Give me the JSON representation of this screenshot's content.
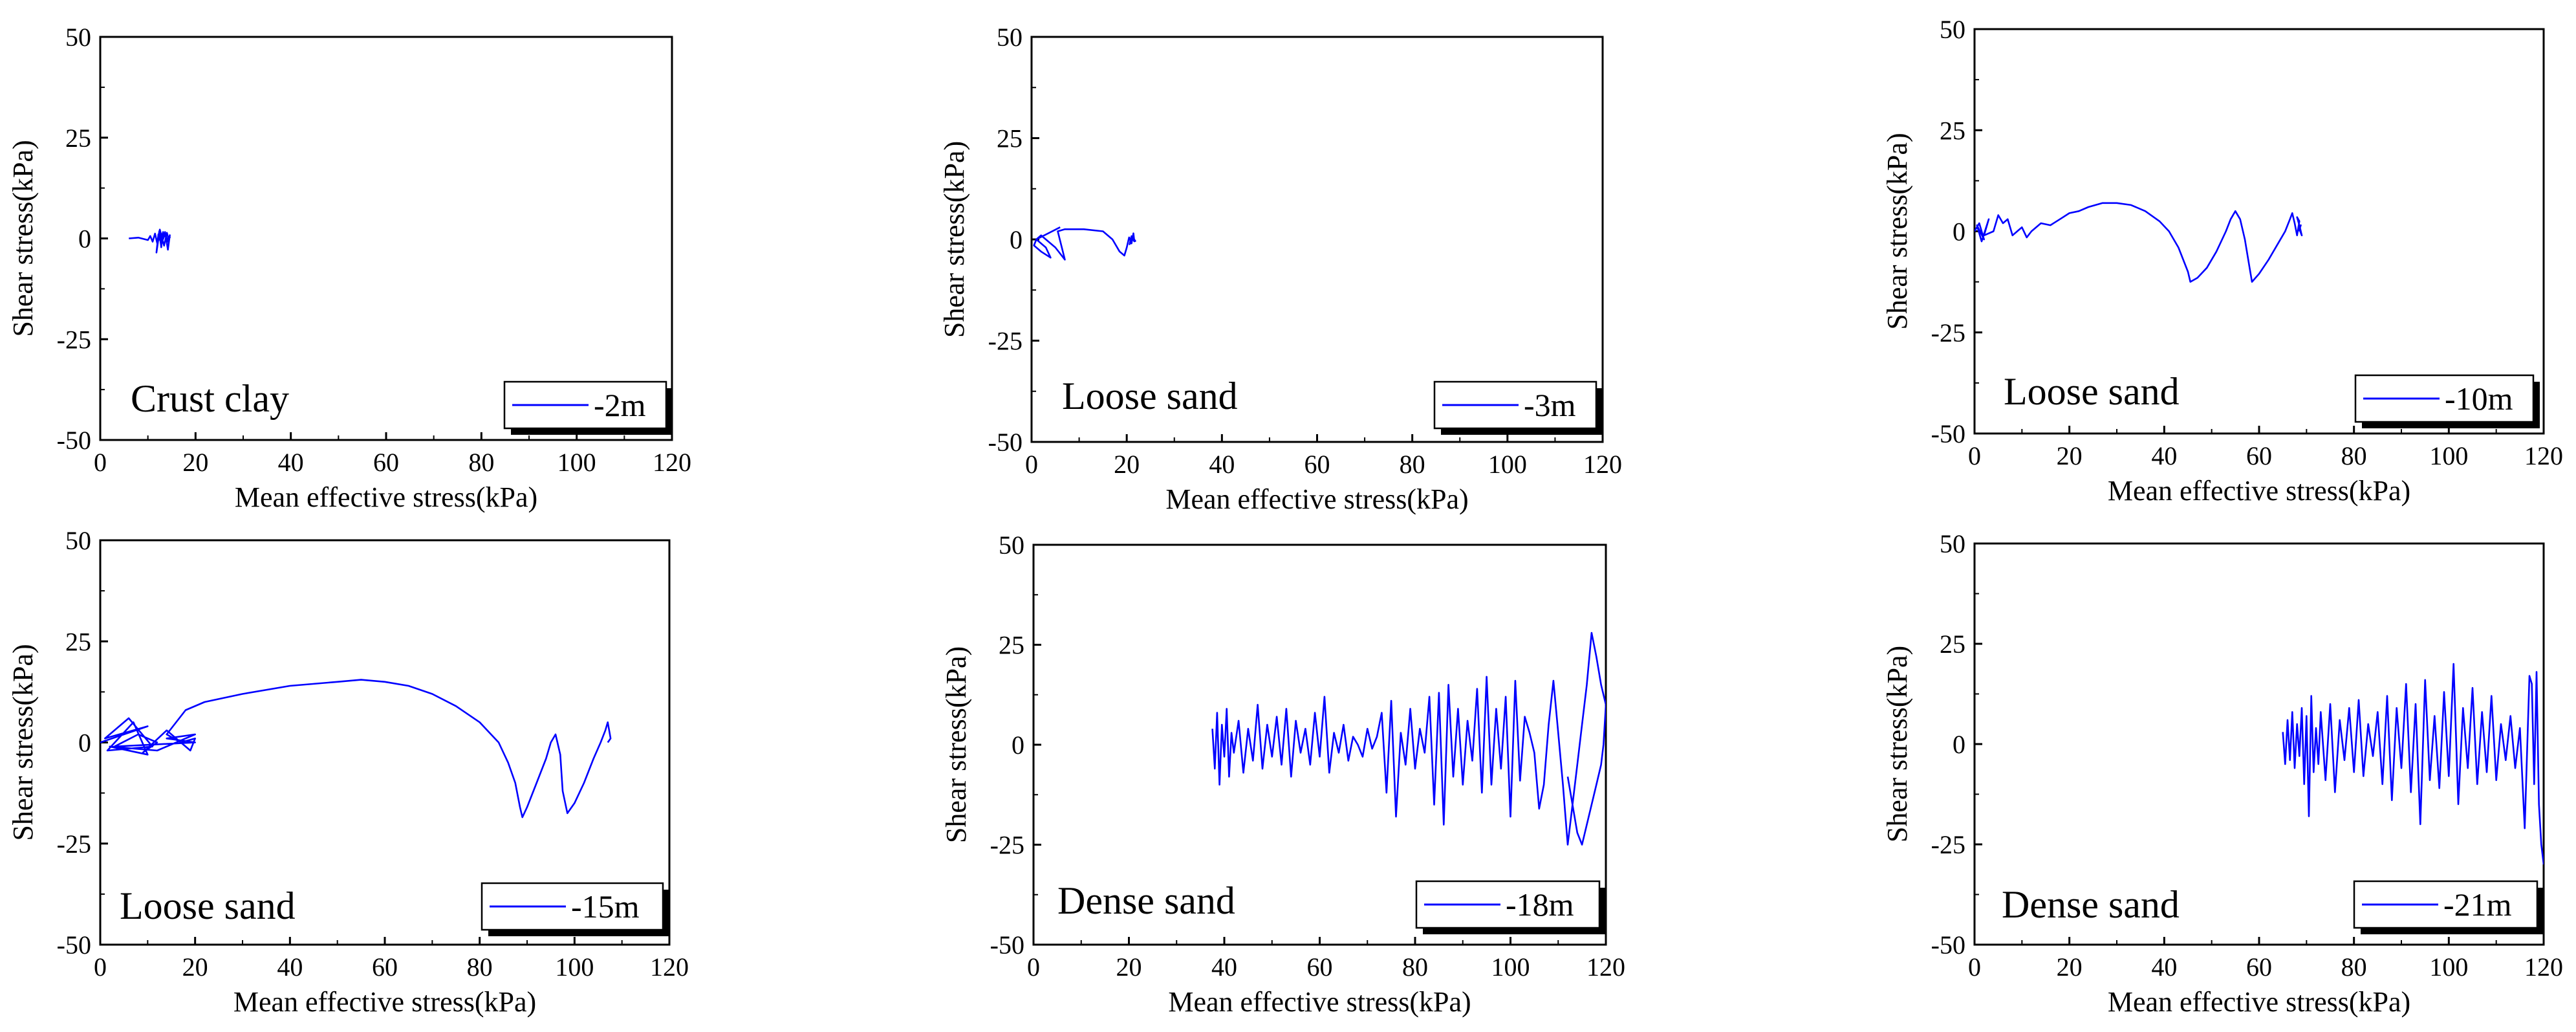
{
  "figure": {
    "colors": {
      "line": "#0000ff",
      "axis": "#000000",
      "background": "#ffffff"
    }
  },
  "chart_data": [
    {
      "type": "line",
      "annotation": "Crust clay",
      "legend": "-2m",
      "legend_position": "bottom-right",
      "xlabel": "Mean effective stress(kPa)",
      "ylabel": "Shear stress(kPa)",
      "xlim": [
        0,
        120
      ],
      "ylim": [
        -50,
        50
      ],
      "xticks": [
        "0",
        "20",
        "40",
        "60",
        "80",
        "100",
        "120"
      ],
      "yticks": [
        "50",
        "25",
        "0",
        "-25",
        "-50"
      ],
      "grid": false,
      "series": [
        {
          "x": [
            6,
            8,
            10,
            10.5,
            11,
            11.5,
            12,
            12.4,
            12.8,
            13.2,
            12.6,
            12.2,
            11.8,
            12.5,
            13.4,
            14,
            14.4,
            14.6,
            14.2,
            13.6,
            13,
            12.6,
            12.8,
            13.6,
            14.2,
            14.6,
            14
          ],
          "y": [
            0,
            0.2,
            -0.4,
            0.6,
            -0.8,
            1.2,
            -1.4,
            1.8,
            -2.2,
            1.6,
            -0.6,
            1,
            -3.5,
            2.2,
            -1.8,
            1.4,
            -0.4,
            0.8,
            -2.8,
            1.6,
            -0.6,
            0.4,
            -1.2,
            1,
            -0.8,
            0.3,
            0
          ]
        }
      ]
    },
    {
      "type": "line",
      "annotation": "Loose sand",
      "legend": "-3m",
      "legend_position": "bottom-right",
      "xlabel": "Mean effective stress(kPa)",
      "ylabel": "Shear stress(kPa)",
      "xlim": [
        0,
        120
      ],
      "ylim": [
        -50,
        50
      ],
      "xticks": [
        "0",
        "20",
        "40",
        "60",
        "80",
        "100",
        "120"
      ],
      "yticks": [
        "50",
        "25",
        "0",
        "-25",
        "-50"
      ],
      "grid": false,
      "series": [
        {
          "x": [
            6,
            1,
            0.5,
            2,
            4,
            3,
            1,
            2,
            5,
            7,
            5.5,
            7,
            11,
            15,
            17,
            18.5,
            19.5,
            20,
            20.5,
            21,
            21.4,
            21.6,
            21,
            20.6,
            21.2,
            21.8,
            21.4,
            21
          ],
          "y": [
            3,
            0,
            -1.5,
            -3,
            -4.5,
            -2,
            0,
            1,
            -2,
            -5,
            2,
            2.5,
            2.5,
            2,
            0,
            -3,
            -4,
            -2,
            0.5,
            -1,
            1.5,
            -0.5,
            0.8,
            -1.2,
            0.6,
            -0.4,
            0.3,
            0
          ]
        }
      ]
    },
    {
      "type": "line",
      "annotation": "Loose sand",
      "legend": "-10m",
      "legend_position": "bottom-right",
      "xlabel": "Mean effective stress(kPa)",
      "ylabel": "Shear stress(kPa)",
      "xlim": [
        0,
        120
      ],
      "ylim": [
        -50,
        50
      ],
      "xticks": [
        "0",
        "20",
        "40",
        "60",
        "80",
        "100",
        "120"
      ],
      "yticks": [
        "50",
        "25",
        "0",
        "-25",
        "-50"
      ],
      "grid": false,
      "series": [
        {
          "x": [
            0,
            1,
            2,
            0.5,
            1.5,
            3,
            2,
            4,
            5,
            6,
            7,
            8,
            9,
            10,
            11,
            12,
            14,
            16,
            18,
            20,
            22,
            24,
            27,
            30,
            33,
            36,
            39,
            41,
            43,
            45,
            45.5,
            47,
            49,
            51,
            53,
            54,
            55,
            56,
            57,
            58,
            58.5,
            60,
            62,
            64,
            65.5,
            66.5,
            67,
            67.5,
            68,
            68.5,
            68,
            68.6,
            69,
            68.5,
            68.8,
            68.4
          ],
          "y": [
            0,
            2,
            -2,
            1.5,
            -2.5,
            3,
            -1,
            0,
            4,
            2,
            3,
            -1,
            0,
            1,
            -1.5,
            0,
            2,
            1.5,
            3,
            4.5,
            5,
            6,
            7,
            7,
            6.5,
            5,
            2.5,
            0,
            -4,
            -10,
            -12.5,
            -11.5,
            -9,
            -5,
            0,
            3,
            5,
            3,
            -2,
            -9,
            -12.5,
            -10.5,
            -7,
            -3,
            0,
            3,
            4.5,
            2,
            -1,
            2.5,
            3.5,
            1,
            -1,
            0.5,
            1.5,
            0
          ]
        }
      ]
    },
    {
      "type": "line",
      "annotation": "Loose sand",
      "legend": "-15m",
      "legend_position": "bottom-right",
      "xlabel": "Mean effective stress(kPa)",
      "ylabel": "Shear stress(kPa)",
      "xlim": [
        0,
        120
      ],
      "ylim": [
        -50,
        50
      ],
      "xticks": [
        "0",
        "20",
        "40",
        "60",
        "80",
        "100",
        "120"
      ],
      "yticks": [
        "50",
        "25",
        "0",
        "-25",
        "-50"
      ],
      "grid": false,
      "series": [
        {
          "x": [
            0,
            10,
            1,
            6,
            11,
            1.5,
            7,
            10,
            2,
            12,
            20,
            14,
            20,
            3,
            8,
            12,
            9,
            14,
            18,
            15,
            19,
            20,
            17,
            14,
            18,
            22,
            30,
            40,
            50,
            55,
            60,
            65,
            70,
            75,
            80,
            84,
            86,
            87.5,
            88.5,
            89,
            90,
            92,
            94,
            95,
            96,
            97,
            97.5,
            98.5,
            100,
            102,
            104,
            105.5,
            106.5,
            107,
            107.3,
            107.6,
            107
          ],
          "y": [
            0,
            4,
            1,
            6,
            -1,
            -2,
            5,
            -3,
            -1,
            -2,
            2,
            1,
            0,
            -1,
            2,
            0,
            -2.5,
            3,
            -1,
            2,
            -2,
            1,
            0,
            2,
            8,
            10,
            12,
            14,
            15,
            15.5,
            15,
            14,
            12,
            9,
            5,
            0,
            -5,
            -10,
            -16,
            -18.5,
            -16,
            -10,
            -4,
            0,
            2,
            -3,
            -12,
            -17.5,
            -15,
            -10,
            -4,
            0,
            3,
            5,
            3,
            1,
            0
          ]
        }
      ]
    },
    {
      "type": "line",
      "annotation": "Dense sand",
      "legend": "-18m",
      "legend_position": "bottom-right",
      "xlabel": "Mean effective stress(kPa)",
      "ylabel": "Shear stress(kPa)",
      "xlim": [
        0,
        120
      ],
      "ylim": [
        -50,
        50
      ],
      "xticks": [
        "0",
        "20",
        "40",
        "60",
        "80",
        "100",
        "120"
      ],
      "yticks": [
        "50",
        "25",
        "0",
        "-25",
        "-50"
      ],
      "grid": false,
      "series": [
        {
          "x": [
            37.5,
            38,
            38.5,
            39,
            39.5,
            40,
            40.5,
            41,
            41.5,
            42,
            43,
            44,
            45,
            46,
            47,
            48,
            49,
            50,
            51,
            52,
            53,
            54,
            55,
            56,
            57,
            58,
            59,
            60,
            61,
            62,
            63,
            64,
            65,
            66,
            67,
            68,
            69,
            70,
            71,
            72,
            73,
            74,
            75,
            76,
            77,
            78,
            79,
            80,
            81,
            82,
            83,
            84,
            85,
            86,
            87,
            88,
            89,
            90,
            91,
            92,
            93,
            94,
            95,
            96,
            97,
            98,
            99,
            100,
            101,
            102,
            103,
            104,
            105,
            106,
            107,
            108,
            109,
            110,
            111,
            112,
            113,
            114,
            115,
            116,
            117,
            118,
            119,
            120,
            119.5,
            119,
            118,
            117,
            116,
            115,
            114,
            113,
            112
          ],
          "y": [
            4,
            -6,
            8,
            -10,
            5,
            -3,
            9,
            -8,
            3,
            -2,
            6,
            -7,
            4,
            -4,
            10,
            -6,
            5,
            -3,
            7,
            -5,
            9,
            -8,
            6,
            -2,
            4,
            -5,
            8,
            -3,
            12,
            -7,
            3,
            -2,
            5,
            -4,
            2,
            0,
            -3,
            4,
            -1,
            2,
            8,
            -12,
            11,
            -18,
            3,
            -5,
            9,
            -6,
            4,
            -2,
            12,
            -15,
            13,
            -20,
            15,
            -8,
            9,
            -10,
            6,
            -4,
            14,
            -12,
            17,
            -10,
            9,
            -6,
            12,
            -18,
            16,
            -9,
            7,
            3,
            -2,
            -16,
            -10,
            5,
            16,
            3,
            -10,
            -25,
            -15,
            -5,
            5,
            15,
            28,
            22,
            15,
            10,
            0,
            -5,
            -10,
            -15,
            -20,
            -25,
            -22,
            -15,
            -8
          ]
        }
      ]
    },
    {
      "type": "line",
      "annotation": "Dense sand",
      "legend": "-21m",
      "legend_position": "bottom-right",
      "xlabel": "Mean effective stress(kPa)",
      "ylabel": "Shear stress(kPa)",
      "xlim": [
        0,
        120
      ],
      "ylim": [
        -50,
        50
      ],
      "xticks": [
        "0",
        "20",
        "40",
        "60",
        "80",
        "100",
        "120"
      ],
      "yticks": [
        "50",
        "25",
        "0",
        "-25",
        "-50"
      ],
      "grid": false,
      "series": [
        {
          "x": [
            65,
            65.5,
            66,
            66.5,
            67,
            67.5,
            68,
            68.5,
            69,
            69.5,
            70,
            70.5,
            71,
            71.5,
            72,
            72.5,
            73,
            74,
            75,
            76,
            77,
            78,
            79,
            80,
            81,
            82,
            83,
            84,
            85,
            86,
            87,
            88,
            89,
            90,
            91,
            92,
            93,
            94,
            95,
            96,
            97,
            98,
            99,
            100,
            101,
            102,
            103,
            104,
            105,
            106,
            107,
            108,
            109,
            110,
            111,
            112,
            113,
            114,
            115,
            116,
            117,
            117.5,
            118,
            118.5,
            119,
            119.5,
            120
          ],
          "y": [
            3,
            -5,
            6,
            -4,
            8,
            -6,
            5,
            -3,
            9,
            -10,
            7,
            -18,
            12,
            -7,
            4,
            -5,
            8,
            -9,
            10,
            -12,
            6,
            -4,
            9,
            -7,
            11,
            -8,
            5,
            -3,
            8,
            -10,
            12,
            -14,
            9,
            -6,
            15,
            -12,
            10,
            -20,
            16,
            -9,
            7,
            -11,
            13,
            -8,
            20,
            -15,
            9,
            -6,
            14,
            -10,
            8,
            -7,
            12,
            -9,
            5,
            -4,
            7,
            -6,
            4,
            -21,
            17,
            15,
            -10,
            18,
            -15,
            -25,
            -30
          ]
        }
      ]
    }
  ]
}
